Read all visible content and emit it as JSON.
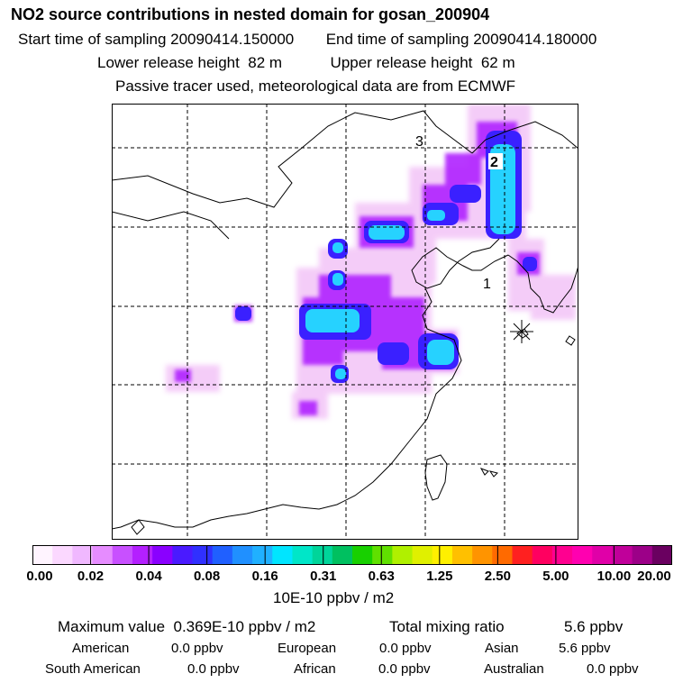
{
  "header": {
    "title": "NO2 source contributions in nested domain for gosan_200904",
    "start_label": "Start time of sampling",
    "start_value": "20090414.150000",
    "end_label": "End time of sampling",
    "end_value": "20090414.180000",
    "lower_label": "Lower release height",
    "lower_value": "82 m",
    "upper_label": "Upper release height",
    "upper_value": "62 m",
    "note": "Passive tracer used, meteorological data are from ECMWF"
  },
  "map": {
    "labels": [
      "3",
      "2",
      "1"
    ],
    "receptor_icon": "star-marker-icon",
    "colors": {
      "land_outline": "#000000",
      "grid": "#000000",
      "plume_low": "#f2b3f5",
      "plume_mid": "#b000ff",
      "plume_high": "#3a20ff",
      "plume_core": "#21c8ff"
    }
  },
  "colorbar": {
    "colors": [
      "#fff4ff",
      "#fbd8ff",
      "#f0b8ff",
      "#e68cff",
      "#c850ff",
      "#b420ff",
      "#8a00ff",
      "#4a1aff",
      "#3030ff",
      "#2060ff",
      "#2090ff",
      "#20b0ff",
      "#00e5ff",
      "#00e6c8",
      "#00d59a",
      "#00c060",
      "#18d000",
      "#60e000",
      "#b0f000",
      "#e0f000",
      "#fff000",
      "#ffc000",
      "#ff9400",
      "#ff6a00",
      "#ff2020",
      "#ff0060",
      "#ff0090",
      "#ff00b0",
      "#e000a8",
      "#c0009a",
      "#9c0088",
      "#6a0060"
    ],
    "ticks": [
      "0.00",
      "0.02",
      "0.04",
      "0.08",
      "0.16",
      "0.31",
      "0.63",
      "1.25",
      "2.50",
      "5.00",
      "10.00",
      "20.00"
    ],
    "units": "10E-10 ppbv / m2"
  },
  "stats": {
    "max_label": "Maximum value",
    "max_value": "0.369E-10 ppbv / m2",
    "total_label": "Total mixing ratio",
    "total_value": "5.6 ppbv",
    "regions": [
      {
        "name": "American",
        "value": "0.0 ppbv"
      },
      {
        "name": "European",
        "value": "0.0 ppbv"
      },
      {
        "name": "Asian",
        "value": "5.6 ppbv"
      },
      {
        "name": "South American",
        "value": "0.0 ppbv"
      },
      {
        "name": "African",
        "value": "0.0 ppbv"
      },
      {
        "name": "Australian",
        "value": "0.0 ppbv"
      }
    ]
  }
}
